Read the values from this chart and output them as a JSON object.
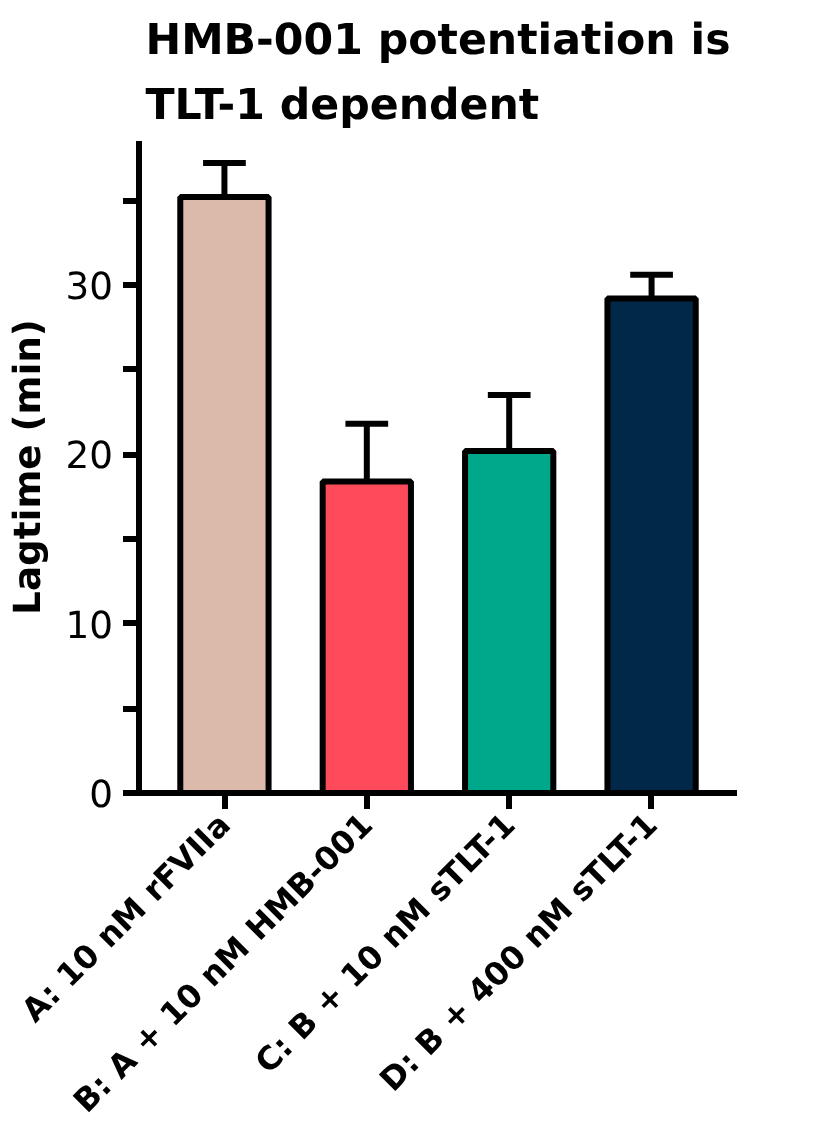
{
  "chart_data": {
    "type": "bar",
    "title": "HMB-001 potentiation is TLT-1 dependent",
    "ylabel": "Lagtime (min)",
    "categories": [
      "A: 10 nM rFVIIa",
      "B: A + 10 nM HMB-001",
      "C: B + 10 nM sTLT-1",
      "D: B + 400 nM sTLT-1"
    ],
    "values": [
      35.2,
      18.4,
      20.2,
      29.2
    ],
    "colors": [
      "#dbbaac",
      "#ff4a5c",
      "#00a88b",
      "#022849"
    ],
    "errors": [
      [
        35.2,
        37.2
      ],
      [
        18.4,
        21.8
      ],
      [
        20.2,
        23.5
      ],
      [
        29.2,
        30.6
      ]
    ],
    "ylim": [
      0,
      38.5
    ],
    "yticks": [
      0,
      {
        "value": 5,
        "label": null
      },
      10,
      {
        "value": 15,
        "label": null
      },
      20,
      {
        "value": 25,
        "label": null
      },
      30,
      {
        "value": 35,
        "label": null
      }
    ],
    "grid": false
  }
}
